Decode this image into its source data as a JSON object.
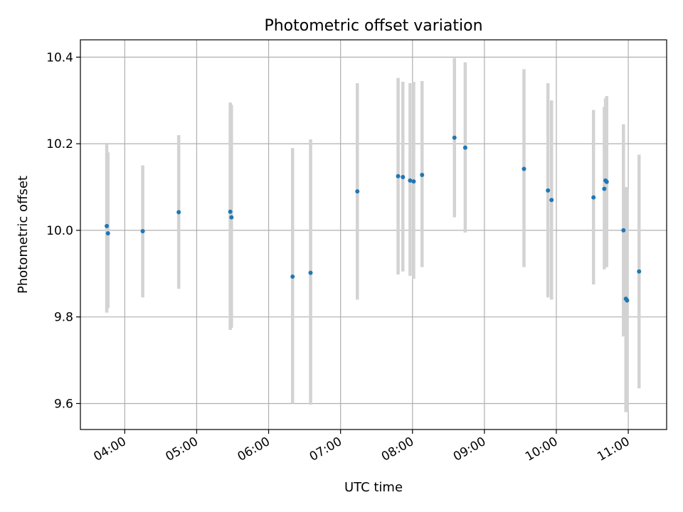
{
  "chart_data": {
    "type": "scatter",
    "title": "Photometric offset variation",
    "xlabel": "UTC time",
    "ylabel": "Photometric offset",
    "xlim": [
      "03:23",
      "11:32"
    ],
    "ylim": [
      9.54,
      10.44
    ],
    "grid": true,
    "x_ticks": [
      "04:00",
      "05:00",
      "06:00",
      "07:00",
      "08:00",
      "09:00",
      "10:00",
      "11:00"
    ],
    "y_ticks": [
      "9.6",
      "9.8",
      "10.0",
      "10.2",
      "10.4"
    ],
    "point_color": "#1f77b4",
    "errorbar_color": "#d3d3d3",
    "series": [
      {
        "points": [
          {
            "x": "03:45",
            "y": 10.01,
            "err_low": 9.81,
            "err_high": 10.2
          },
          {
            "x": "03:46",
            "y": 9.993,
            "err_low": 9.82,
            "err_high": 10.18
          },
          {
            "x": "04:15",
            "y": 9.998,
            "err_low": 9.845,
            "err_high": 10.15
          },
          {
            "x": "04:45",
            "y": 10.042,
            "err_low": 9.865,
            "err_high": 10.22
          },
          {
            "x": "05:28",
            "y": 10.043,
            "err_low": 9.77,
            "err_high": 10.295
          },
          {
            "x": "05:29",
            "y": 10.03,
            "err_low": 9.775,
            "err_high": 10.29
          },
          {
            "x": "06:20",
            "y": 9.893,
            "err_low": 9.6,
            "err_high": 10.19
          },
          {
            "x": "06:35",
            "y": 9.902,
            "err_low": 9.597,
            "err_high": 10.21
          },
          {
            "x": "07:14",
            "y": 10.09,
            "err_low": 9.84,
            "err_high": 10.34
          },
          {
            "x": "07:48",
            "y": 10.125,
            "err_low": 9.898,
            "err_high": 10.352
          },
          {
            "x": "07:52",
            "y": 10.123,
            "err_low": 9.905,
            "err_high": 10.343
          },
          {
            "x": "07:58",
            "y": 10.115,
            "err_low": 9.895,
            "err_high": 10.34
          },
          {
            "x": "08:01",
            "y": 10.113,
            "err_low": 9.888,
            "err_high": 10.343
          },
          {
            "x": "08:08",
            "y": 10.128,
            "err_low": 9.915,
            "err_high": 10.345
          },
          {
            "x": "08:35",
            "y": 10.214,
            "err_low": 10.03,
            "err_high": 10.398
          },
          {
            "x": "08:44",
            "y": 10.191,
            "err_low": 9.995,
            "err_high": 10.388
          },
          {
            "x": "09:33",
            "y": 10.142,
            "err_low": 9.915,
            "err_high": 10.372
          },
          {
            "x": "09:53",
            "y": 10.092,
            "err_low": 9.845,
            "err_high": 10.34
          },
          {
            "x": "09:56",
            "y": 10.07,
            "err_low": 9.84,
            "err_high": 10.3
          },
          {
            "x": "10:31",
            "y": 10.076,
            "err_low": 9.875,
            "err_high": 10.278
          },
          {
            "x": "10:40",
            "y": 10.096,
            "err_low": 9.91,
            "err_high": 10.285
          },
          {
            "x": "10:41",
            "y": 10.115,
            "err_low": 9.915,
            "err_high": 10.305
          },
          {
            "x": "10:42",
            "y": 10.112,
            "err_low": 9.915,
            "err_high": 10.31
          },
          {
            "x": "10:56",
            "y": 10.0,
            "err_low": 9.755,
            "err_high": 10.245
          },
          {
            "x": "10:58",
            "y": 9.842,
            "err_low": 9.58,
            "err_high": 10.1
          },
          {
            "x": "10:59",
            "y": 9.838,
            "err_low": 9.585,
            "err_high": 10.095
          },
          {
            "x": "11:09",
            "y": 9.905,
            "err_low": 9.635,
            "err_high": 10.175
          }
        ]
      }
    ]
  }
}
